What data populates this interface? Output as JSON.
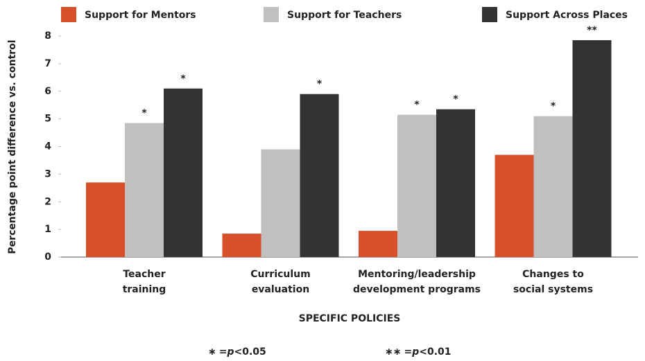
{
  "chart_data": {
    "type": "bar",
    "y_label": "Percentage point difference vs. control",
    "x_label": "SPECIFIC POLICIES",
    "categories": [
      [
        "Teacher",
        "training"
      ],
      [
        "Curriculum",
        "evaluation"
      ],
      [
        "Mentoring/leadership",
        "development programs"
      ],
      [
        "Changes to",
        "social systems"
      ]
    ],
    "series": [
      {
        "name": "Support for Mentors",
        "color": "#d6502b",
        "values": [
          2.7,
          0.85,
          0.95,
          3.7
        ],
        "significance": [
          null,
          null,
          null,
          null
        ]
      },
      {
        "name": "Support for Teachers",
        "color": "#c1c0be",
        "values": [
          4.85,
          3.9,
          5.15,
          5.1
        ],
        "significance": [
          "*",
          null,
          "*",
          "*"
        ]
      },
      {
        "name": "Support Across Places",
        "color": "#333333",
        "values": [
          6.1,
          5.9,
          5.35,
          7.85
        ],
        "significance": [
          "*",
          "*",
          "*",
          "**"
        ]
      }
    ],
    "ylim": [
      0,
      8
    ],
    "yticks": [
      0,
      1,
      2,
      3,
      4,
      5,
      6,
      7,
      8
    ],
    "legend": "top",
    "footnotes": [
      {
        "marker": "∗",
        "sign": "=",
        "italic": "p",
        "rest": "<0.05"
      },
      {
        "marker": "∗∗",
        "sign": "=",
        "italic": "p",
        "rest": "<0.01"
      }
    ]
  }
}
